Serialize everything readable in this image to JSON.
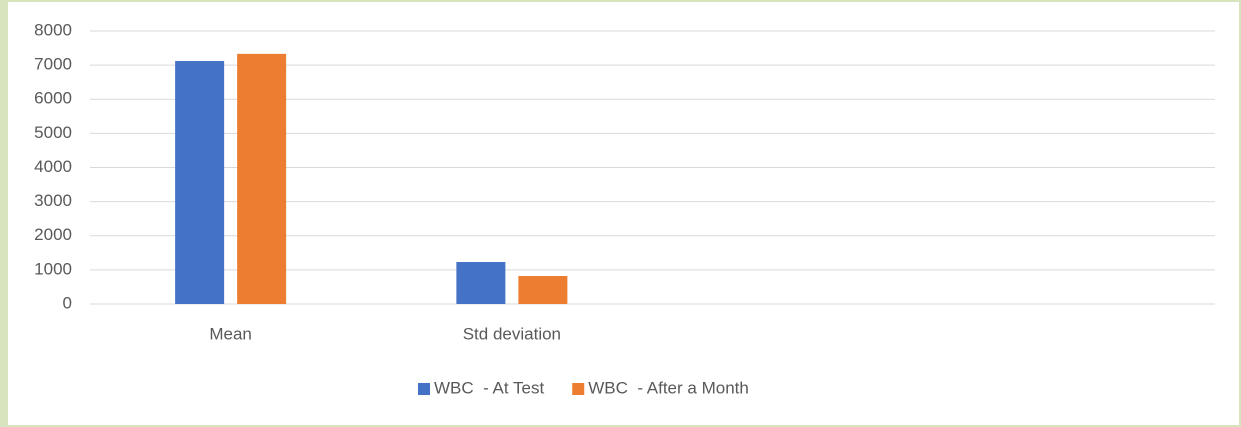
{
  "chart_data": {
    "type": "bar",
    "categories": [
      "Mean",
      "Std deviation",
      null,
      null
    ],
    "series": [
      {
        "name": "WBC  - At Test",
        "color": "#4472c4",
        "values": [
          7120,
          1230,
          null,
          null
        ]
      },
      {
        "name": "WBC  - After a Month",
        "color": "#ed7d31",
        "values": [
          7330,
          820,
          null,
          null
        ]
      }
    ],
    "ylim": [
      0,
      8000
    ],
    "yticks": [
      0,
      1000,
      2000,
      3000,
      4000,
      5000,
      6000,
      7000,
      8000
    ],
    "grid": true,
    "legend": "bottom"
  }
}
